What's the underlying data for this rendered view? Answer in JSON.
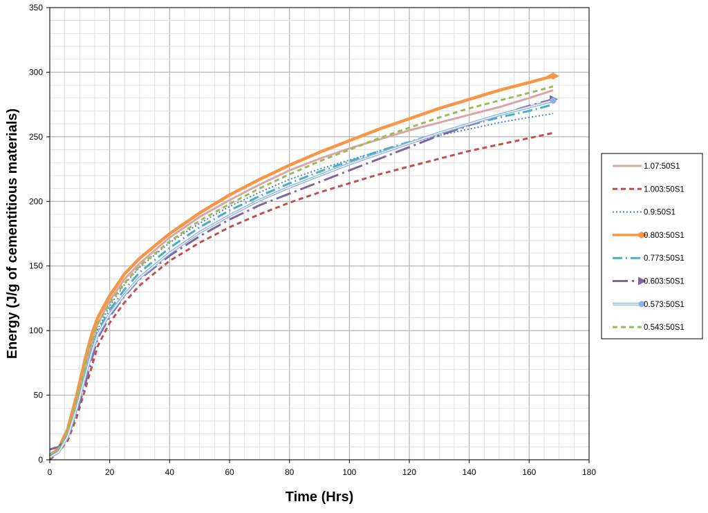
{
  "chart_data": {
    "type": "line",
    "title": "",
    "xlabel": "Time (Hrs)",
    "ylabel": "Energy (J/g of cementitious materials)",
    "xlim": [
      0,
      180
    ],
    "ylim": [
      0,
      350
    ],
    "x_major_ticks": [
      0,
      20,
      40,
      60,
      80,
      100,
      120,
      140,
      160,
      180
    ],
    "y_major_ticks": [
      0,
      50,
      100,
      150,
      200,
      250,
      300,
      350
    ],
    "x_minor_step": 5,
    "y_minor_step": 10,
    "grid": true,
    "legend_position": "right",
    "x": [
      0,
      3,
      6,
      9,
      12,
      14,
      16,
      20,
      25,
      30,
      40,
      50,
      60,
      70,
      80,
      90,
      100,
      110,
      120,
      130,
      140,
      150,
      160,
      168
    ],
    "series": [
      {
        "name": "1.07:50S1",
        "color": "#d9a6a6",
        "style": "solid",
        "width": 3,
        "marker": "none",
        "values": [
          3,
          8,
          20,
          42,
          72,
          90,
          105,
          123,
          140,
          152,
          172,
          188,
          201,
          213,
          224,
          233,
          241,
          248,
          255,
          261,
          267,
          273,
          280,
          286
        ]
      },
      {
        "name": "1.003:50S1",
        "color": "#c0504d",
        "style": "dash",
        "width": 3,
        "marker": "none",
        "values": [
          0,
          6,
          15,
          33,
          56,
          72,
          88,
          106,
          122,
          135,
          154,
          168,
          180,
          190,
          199,
          207,
          214,
          221,
          227,
          233,
          239,
          244,
          249,
          253
        ]
      },
      {
        "name": "0.9:50S1",
        "color": "#4f81bd",
        "style": "dot",
        "width": 2,
        "marker": "none",
        "values": [
          2,
          7,
          18,
          40,
          68,
          86,
          101,
          119,
          136,
          149,
          168,
          183,
          196,
          207,
          217,
          225,
          232,
          239,
          245,
          251,
          256,
          261,
          265,
          268
        ]
      },
      {
        "name": "0.803:50S1",
        "color": "#f79646",
        "style": "solid",
        "width": 4.5,
        "marker": "diamond",
        "values": [
          3,
          9,
          24,
          50,
          80,
          97,
          110,
          127,
          144,
          156,
          175,
          191,
          205,
          217,
          228,
          238,
          247,
          256,
          264,
          272,
          279,
          286,
          292,
          297
        ]
      },
      {
        "name": "0.773:50S1",
        "color": "#4bacc6",
        "style": "dashdot",
        "width": 3,
        "marker": "none",
        "values": [
          2,
          7,
          19,
          41,
          68,
          85,
          99,
          116,
          132,
          145,
          164,
          180,
          193,
          204,
          214,
          223,
          231,
          239,
          246,
          253,
          259,
          265,
          270,
          275
        ]
      },
      {
        "name": "0.603:50S1",
        "color": "#8064a2",
        "style": "longdashdot",
        "width": 3,
        "marker": "triangle",
        "values": [
          8,
          10,
          18,
          36,
          60,
          78,
          94,
          111,
          127,
          140,
          158,
          173,
          186,
          197,
          206,
          215,
          224,
          233,
          242,
          251,
          259,
          267,
          274,
          279
        ]
      },
      {
        "name": "0.573:50S1",
        "color": "#8db3e2",
        "style": "double",
        "width": 1.5,
        "marker": "circle",
        "values": [
          2,
          6,
          18,
          40,
          66,
          83,
          97,
          113,
          128,
          141,
          160,
          176,
          189,
          201,
          211,
          220,
          229,
          237,
          245,
          253,
          260,
          267,
          273,
          278
        ]
      },
      {
        "name": "0.543:50S1",
        "color": "#9bbb59",
        "style": "dash",
        "width": 3,
        "marker": "none",
        "values": [
          4,
          9,
          22,
          46,
          75,
          92,
          105,
          121,
          137,
          150,
          169,
          185,
          198,
          210,
          221,
          231,
          240,
          249,
          257,
          265,
          272,
          278,
          284,
          289
        ]
      }
    ]
  }
}
